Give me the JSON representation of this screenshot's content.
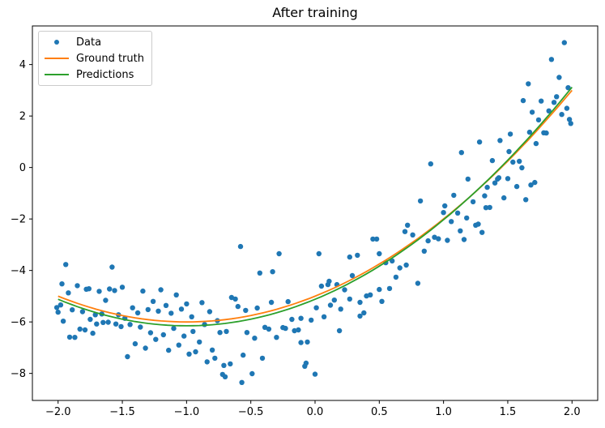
{
  "chart_data": {
    "type": "scatter",
    "title": "After training",
    "xlabel": "",
    "ylabel": "",
    "xlim": [
      -2.2,
      2.2
    ],
    "ylim": [
      -9.05,
      5.5
    ],
    "grid": false,
    "legend_position": "upper left",
    "x_ticks": [
      {
        "v": -2.0,
        "label": "−2.0"
      },
      {
        "v": -1.5,
        "label": "−1.5"
      },
      {
        "v": -1.0,
        "label": "−1.0"
      },
      {
        "v": -0.5,
        "label": "−0.5"
      },
      {
        "v": 0.0,
        "label": "0.0"
      },
      {
        "v": 0.5,
        "label": "0.5"
      },
      {
        "v": 1.0,
        "label": "1.0"
      },
      {
        "v": 1.5,
        "label": "1.5"
      },
      {
        "v": 2.0,
        "label": "2.0"
      }
    ],
    "y_ticks": [
      {
        "v": 4,
        "label": "4"
      },
      {
        "v": 2,
        "label": "2"
      },
      {
        "v": 0,
        "label": "0"
      },
      {
        "v": -2,
        "label": "−2"
      },
      {
        "v": -4,
        "label": "−4"
      },
      {
        "v": -6,
        "label": "−6"
      },
      {
        "v": -8,
        "label": "−8"
      }
    ],
    "series": [
      {
        "name": "Data",
        "type": "scatter",
        "color": "#1f77b4",
        "marker": "dot",
        "points": [
          [
            -2.01,
            -5.44
          ],
          [
            -2.0,
            -5.62
          ],
          [
            -1.98,
            -5.34
          ],
          [
            -1.97,
            -4.52
          ],
          [
            -1.96,
            -5.97
          ],
          [
            -1.94,
            -3.77
          ],
          [
            -1.92,
            -4.87
          ],
          [
            -1.91,
            -6.59
          ],
          [
            -1.89,
            -5.53
          ],
          [
            -1.87,
            -6.6
          ],
          [
            -1.85,
            -4.59
          ],
          [
            -1.83,
            -6.28
          ],
          [
            -1.81,
            -5.6
          ],
          [
            -1.79,
            -6.31
          ],
          [
            -1.78,
            -4.73
          ],
          [
            -1.76,
            -4.71
          ],
          [
            -1.75,
            -5.9
          ],
          [
            -1.73,
            -6.44
          ],
          [
            -1.71,
            -5.72
          ],
          [
            -1.7,
            -6.08
          ],
          [
            -1.68,
            -4.81
          ],
          [
            -1.66,
            -5.69
          ],
          [
            -1.65,
            -6.02
          ],
          [
            -1.63,
            -5.16
          ],
          [
            -1.61,
            -6.01
          ],
          [
            -1.6,
            -4.72
          ],
          [
            -1.58,
            -3.87
          ],
          [
            -1.56,
            -4.78
          ],
          [
            -1.55,
            -6.08
          ],
          [
            -1.53,
            -5.72
          ],
          [
            -1.51,
            -6.18
          ],
          [
            -1.5,
            -4.65
          ],
          [
            -1.48,
            -5.86
          ],
          [
            -1.46,
            -7.35
          ],
          [
            -1.44,
            -6.1
          ],
          [
            -1.42,
            -5.45
          ],
          [
            -1.4,
            -6.85
          ],
          [
            -1.38,
            -5.65
          ],
          [
            -1.36,
            -6.2
          ],
          [
            -1.34,
            -4.8
          ],
          [
            -1.32,
            -7.02
          ],
          [
            -1.3,
            -5.52
          ],
          [
            -1.28,
            -6.42
          ],
          [
            -1.26,
            -5.2
          ],
          [
            -1.24,
            -6.68
          ],
          [
            -1.22,
            -5.58
          ],
          [
            -1.2,
            -4.75
          ],
          [
            -1.18,
            -6.5
          ],
          [
            -1.16,
            -5.36
          ],
          [
            -1.14,
            -7.1
          ],
          [
            -1.12,
            -5.66
          ],
          [
            -1.1,
            -6.25
          ],
          [
            -1.08,
            -4.95
          ],
          [
            -1.06,
            -6.9
          ],
          [
            -1.04,
            -5.5
          ],
          [
            -1.02,
            -6.55
          ],
          [
            -1.0,
            -5.3
          ],
          [
            -0.98,
            -7.25
          ],
          [
            -0.96,
            -5.8
          ],
          [
            -0.95,
            -6.37
          ],
          [
            -0.93,
            -7.16
          ],
          [
            -0.9,
            -6.78
          ],
          [
            -0.88,
            -5.25
          ],
          [
            -0.86,
            -6.1
          ],
          [
            -0.84,
            -7.55
          ],
          [
            -0.82,
            -5.6
          ],
          [
            -0.8,
            -7.09
          ],
          [
            -0.78,
            -7.41
          ],
          [
            -0.76,
            -5.95
          ],
          [
            -0.74,
            -6.41
          ],
          [
            -0.72,
            -8.04
          ],
          [
            -0.71,
            -7.69
          ],
          [
            -0.7,
            -8.13
          ],
          [
            -0.69,
            -6.37
          ],
          [
            -0.66,
            -7.63
          ],
          [
            -0.65,
            -5.05
          ],
          [
            -0.62,
            -5.11
          ],
          [
            -0.6,
            -5.4
          ],
          [
            -0.58,
            -3.07
          ],
          [
            -0.57,
            -8.35
          ],
          [
            -0.56,
            -7.29
          ],
          [
            -0.54,
            -5.55
          ],
          [
            -0.53,
            -6.41
          ],
          [
            -0.49,
            -8.01
          ],
          [
            -0.47,
            -6.63
          ],
          [
            -0.45,
            -5.46
          ],
          [
            -0.43,
            -4.1
          ],
          [
            -0.41,
            -7.41
          ],
          [
            -0.39,
            -6.21
          ],
          [
            -0.36,
            -6.28
          ],
          [
            -0.34,
            -5.24
          ],
          [
            -0.33,
            -4.05
          ],
          [
            -0.3,
            -6.6
          ],
          [
            -0.28,
            -3.35
          ],
          [
            -0.25,
            -6.22
          ],
          [
            -0.23,
            -6.25
          ],
          [
            -0.21,
            -5.21
          ],
          [
            -0.18,
            -5.9
          ],
          [
            -0.16,
            -6.34
          ],
          [
            -0.13,
            -6.31
          ],
          [
            -0.11,
            -6.8
          ],
          [
            -0.11,
            -5.86
          ],
          [
            -0.08,
            -7.72
          ],
          [
            -0.07,
            -7.6
          ],
          [
            -0.06,
            -6.78
          ],
          [
            -0.03,
            -5.93
          ],
          [
            0.0,
            -8.03
          ],
          [
            0.01,
            -5.45
          ],
          [
            0.03,
            -3.35
          ],
          [
            0.05,
            -4.61
          ],
          [
            0.07,
            -5.8
          ],
          [
            0.1,
            -4.55
          ],
          [
            0.11,
            -4.42
          ],
          [
            0.12,
            -5.35
          ],
          [
            0.15,
            -5.15
          ],
          [
            0.17,
            -4.55
          ],
          [
            0.19,
            -6.34
          ],
          [
            0.2,
            -5.5
          ],
          [
            0.23,
            -4.75
          ],
          [
            0.27,
            -5.11
          ],
          [
            0.27,
            -3.48
          ],
          [
            0.29,
            -4.2
          ],
          [
            0.33,
            -3.41
          ],
          [
            0.35,
            -5.24
          ],
          [
            0.35,
            -5.77
          ],
          [
            0.38,
            -5.65
          ],
          [
            0.4,
            -4.99
          ],
          [
            0.43,
            -4.95
          ],
          [
            0.45,
            -2.78
          ],
          [
            0.48,
            -2.78
          ],
          [
            0.5,
            -3.35
          ],
          [
            0.5,
            -4.74
          ],
          [
            0.52,
            -5.2
          ],
          [
            0.55,
            -3.7
          ],
          [
            0.58,
            -4.7
          ],
          [
            0.6,
            -3.63
          ],
          [
            0.63,
            -4.26
          ],
          [
            0.66,
            -3.9
          ],
          [
            0.7,
            -2.49
          ],
          [
            0.71,
            -3.79
          ],
          [
            0.72,
            -2.24
          ],
          [
            0.76,
            -2.62
          ],
          [
            0.8,
            -4.5
          ],
          [
            0.82,
            -1.3
          ],
          [
            0.85,
            -3.25
          ],
          [
            0.88,
            -2.85
          ],
          [
            0.9,
            0.14
          ],
          [
            0.93,
            -2.71
          ],
          [
            0.96,
            -2.77
          ],
          [
            1.0,
            -1.75
          ],
          [
            1.01,
            -1.49
          ],
          [
            1.03,
            -2.83
          ],
          [
            1.06,
            -2.1
          ],
          [
            1.08,
            -1.08
          ],
          [
            1.11,
            -1.77
          ],
          [
            1.13,
            -2.46
          ],
          [
            1.14,
            0.58
          ],
          [
            1.16,
            -2.8
          ],
          [
            1.18,
            -1.96
          ],
          [
            1.19,
            -0.45
          ],
          [
            1.23,
            -1.33
          ],
          [
            1.25,
            -2.24
          ],
          [
            1.27,
            -2.2
          ],
          [
            1.28,
            0.99
          ],
          [
            1.3,
            -2.52
          ],
          [
            1.32,
            -1.1
          ],
          [
            1.33,
            -1.56
          ],
          [
            1.34,
            -0.77
          ],
          [
            1.36,
            -1.55
          ],
          [
            1.38,
            0.27
          ],
          [
            1.4,
            -0.6
          ],
          [
            1.42,
            -0.45
          ],
          [
            1.43,
            -0.4
          ],
          [
            1.44,
            1.05
          ],
          [
            1.47,
            -1.18
          ],
          [
            1.5,
            -0.43
          ],
          [
            1.51,
            0.62
          ],
          [
            1.52,
            1.3
          ],
          [
            1.54,
            0.21
          ],
          [
            1.57,
            -0.74
          ],
          [
            1.59,
            0.24
          ],
          [
            1.61,
            -0.01
          ],
          [
            1.62,
            2.6
          ],
          [
            1.64,
            -1.25
          ],
          [
            1.66,
            3.25
          ],
          [
            1.67,
            1.37
          ],
          [
            1.68,
            -0.68
          ],
          [
            1.69,
            2.15
          ],
          [
            1.71,
            -0.58
          ],
          [
            1.72,
            0.93
          ],
          [
            1.74,
            1.85
          ],
          [
            1.76,
            2.58
          ],
          [
            1.78,
            1.35
          ],
          [
            1.8,
            1.34
          ],
          [
            1.82,
            2.2
          ],
          [
            1.84,
            4.2
          ],
          [
            1.86,
            2.53
          ],
          [
            1.88,
            2.75
          ],
          [
            1.9,
            3.5
          ],
          [
            1.92,
            2.06
          ],
          [
            1.94,
            4.85
          ],
          [
            1.96,
            2.3
          ],
          [
            1.97,
            3.1
          ],
          [
            1.98,
            1.87
          ],
          [
            1.99,
            1.71
          ]
        ]
      },
      {
        "name": "Ground truth",
        "type": "line",
        "color": "#ff7f0e",
        "poly_coeffs": [
          1.0,
          2.0,
          -5.0
        ],
        "x_range": [
          -2.0,
          2.0
        ]
      },
      {
        "name": "Predictions",
        "type": "line",
        "color": "#2ca02c",
        "poly_coeffs": [
          1.03,
          2.06,
          -5.12
        ],
        "x_range": [
          -2.0,
          2.0
        ]
      }
    ]
  }
}
